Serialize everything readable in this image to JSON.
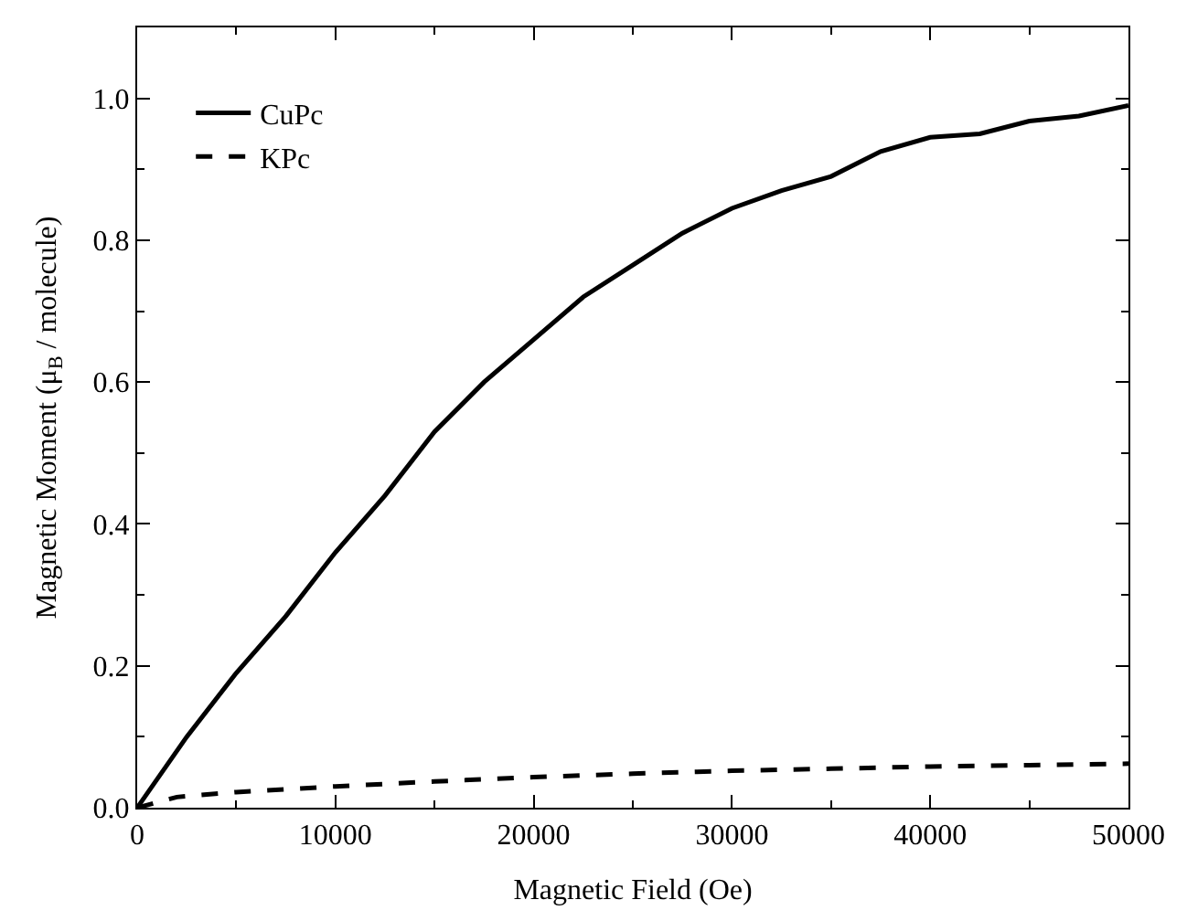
{
  "chart_data": {
    "type": "line",
    "xlabel": "Magnetic Field (Oe)",
    "ylabel": "Magnetic Moment (μ$_{B}$ / molecule)",
    "xlim": [
      0,
      50000
    ],
    "xticks": [
      0,
      10000,
      20000,
      30000,
      40000,
      50000
    ],
    "ylim": [
      0,
      1.1
    ],
    "yticks": [
      {
        "value": 0,
        "label": "0.0"
      },
      0.2,
      0.4,
      0.6,
      0.8,
      {
        "value": 1,
        "label": "1.0"
      }
    ],
    "legend": "top left",
    "marker": "none",
    "series": [
      {
        "name": "CuPc",
        "color": "#000000",
        "line_style": "solid",
        "x": [
          0,
          2500,
          5000,
          7500,
          10000,
          12500,
          15000,
          17500,
          20000,
          22500,
          25000,
          27500,
          30000,
          32500,
          35000,
          37500,
          40000,
          42500,
          45000,
          47500,
          50000
        ],
        "values": [
          0,
          0.1,
          0.19,
          0.27,
          0.36,
          0.44,
          0.53,
          0.6,
          0.66,
          0.72,
          0.765,
          0.81,
          0.845,
          0.87,
          0.89,
          0.925,
          0.945,
          0.95,
          0.968,
          0.975,
          0.99
        ]
      },
      {
        "name": "KPc",
        "color": "#000000",
        "line_style": "dashed",
        "x": [
          0,
          2000,
          5000,
          10000,
          15000,
          20000,
          25000,
          30000,
          35000,
          40000,
          45000,
          50000
        ],
        "values": [
          0,
          0.015,
          0.022,
          0.03,
          0.037,
          0.043,
          0.048,
          0.052,
          0.055,
          0.058,
          0.06,
          0.062
        ]
      }
    ]
  }
}
